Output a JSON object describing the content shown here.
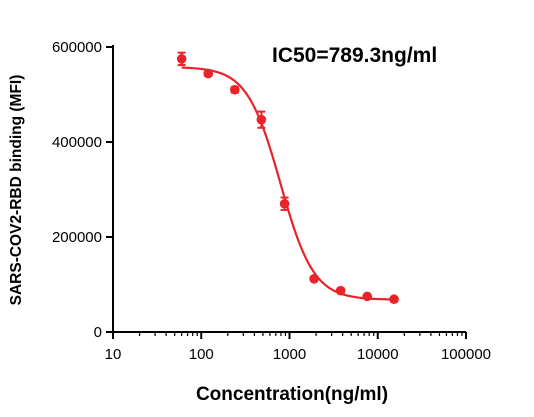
{
  "chart_data": {
    "type": "scatter",
    "title": "",
    "xlabel": "Concentration(ng/ml)",
    "ylabel": "SARS-COV2-RBD binding (MFI)",
    "annotation": "IC50=789.3ng/ml",
    "x_scale": "log",
    "xlim": [
      10,
      100000
    ],
    "ylim": [
      0,
      600000
    ],
    "x_ticks": [
      10,
      100,
      1000,
      10000,
      100000
    ],
    "x_tick_labels": [
      "10",
      "100",
      "1000",
      "10000",
      "100000"
    ],
    "y_ticks": [
      0,
      200000,
      400000,
      600000
    ],
    "y_tick_labels": [
      "0",
      "200000",
      "400000",
      "600000"
    ],
    "grid": false,
    "color": "#e8242a",
    "series": [
      {
        "x": [
          60,
          120,
          240,
          480,
          880,
          1900,
          3800,
          7600,
          15300
        ],
        "y": [
          575000,
          544000,
          510000,
          447000,
          270000,
          112000,
          87000,
          75000,
          69000
        ],
        "err": [
          13000,
          5000,
          6000,
          17000,
          13000,
          4000,
          4000,
          4000,
          4000
        ]
      }
    ],
    "fit": {
      "model": "4PL",
      "top": 558000,
      "bottom": 68000,
      "ic50": 789.3,
      "hill": 2.3
    }
  }
}
